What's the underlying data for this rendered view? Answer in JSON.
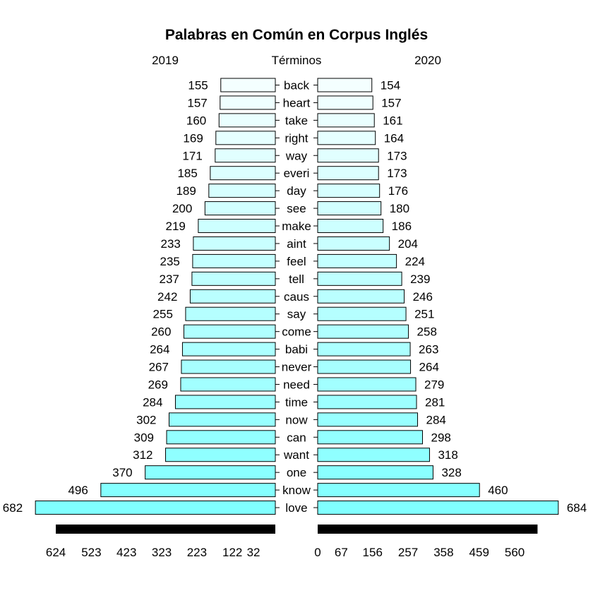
{
  "chart_data": {
    "type": "bar",
    "orientation": "horizontal-pyramid",
    "title": "Palabras en Común en Corpus Inglés",
    "left_header": "2019",
    "center_header": "Términos",
    "right_header": "2020",
    "categories": [
      "back",
      "heart",
      "take",
      "right",
      "way",
      "everi",
      "day",
      "see",
      "make",
      "aint",
      "feel",
      "tell",
      "caus",
      "say",
      "come",
      "babi",
      "never",
      "need",
      "time",
      "now",
      "can",
      "want",
      "one",
      "know",
      "love"
    ],
    "series": [
      {
        "name": "2019",
        "values": [
          155,
          157,
          160,
          169,
          171,
          185,
          189,
          200,
          219,
          233,
          235,
          237,
          242,
          255,
          260,
          264,
          267,
          269,
          284,
          302,
          309,
          312,
          370,
          496,
          682
        ]
      },
      {
        "name": "2020",
        "values": [
          154,
          157,
          161,
          164,
          173,
          173,
          176,
          180,
          186,
          204,
          224,
          239,
          246,
          251,
          258,
          263,
          264,
          279,
          281,
          284,
          298,
          318,
          328,
          460,
          684
        ]
      }
    ],
    "left_axis_ticks": [
      "624",
      "523",
      "423",
      "323",
      "223",
      "122",
      "32"
    ],
    "left_axis_tick_values": [
      624,
      523,
      423,
      323,
      223,
      122,
      32
    ],
    "right_axis_ticks": [
      "0",
      "67",
      "156",
      "257",
      "358",
      "459",
      "560"
    ],
    "right_axis_tick_values": [
      0,
      67,
      156,
      257,
      358,
      459,
      560
    ],
    "bar_colors": {
      "small": "#f4ffff",
      "large": "#80ffff",
      "axis_bar": "#000000",
      "stroke": "#000000"
    }
  }
}
